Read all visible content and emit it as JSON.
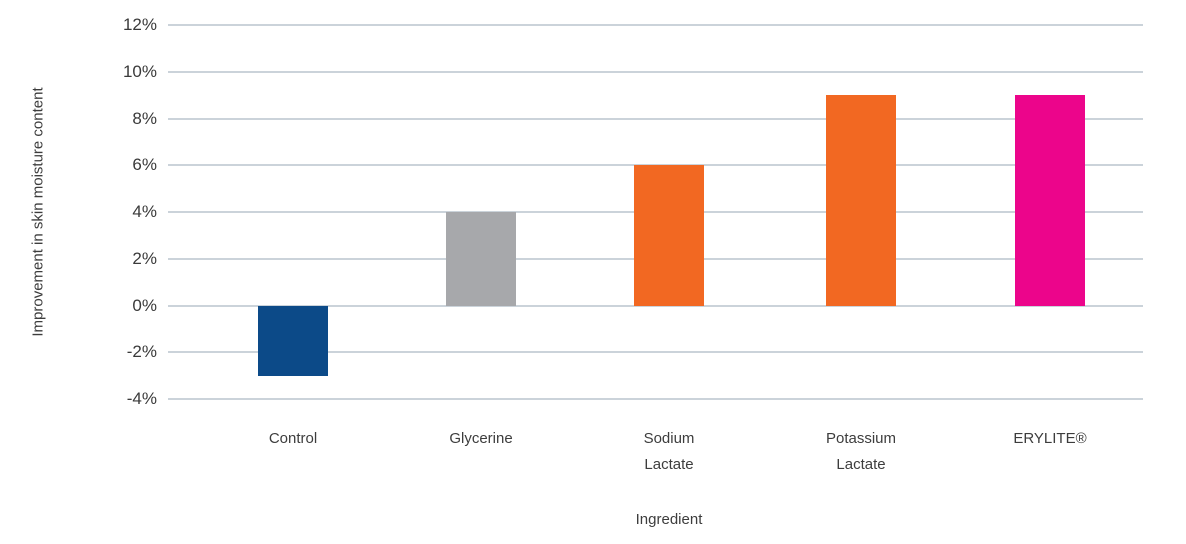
{
  "chart_data": {
    "type": "bar",
    "title": "",
    "xlabel": "Ingredient",
    "ylabel": "Improvement in skin moisture content",
    "categories": [
      "Control",
      "Glycerine",
      "Sodium\nLactate",
      "Potassium\nLactate",
      "ERYLITE®"
    ],
    "values": [
      -3,
      4,
      6,
      9,
      9
    ],
    "value_unit": "%",
    "bar_colors": [
      "#0c4a88",
      "#a7a8ab",
      "#f26822",
      "#f26822",
      "#ec058b"
    ],
    "ylim": [
      -4,
      12
    ],
    "yticks": [
      12,
      10,
      8,
      6,
      4,
      2,
      0,
      -2,
      -4
    ],
    "ytick_labels": [
      "12%",
      "10%",
      "8%",
      "6%",
      "4%",
      "2%",
      "0%",
      "-2%",
      "-4%"
    ],
    "grid": "horizontal",
    "legend": "none",
    "background_color": "#ffffff",
    "gridline_color": "#cbd3da",
    "text_color": "#3d3d3d"
  }
}
